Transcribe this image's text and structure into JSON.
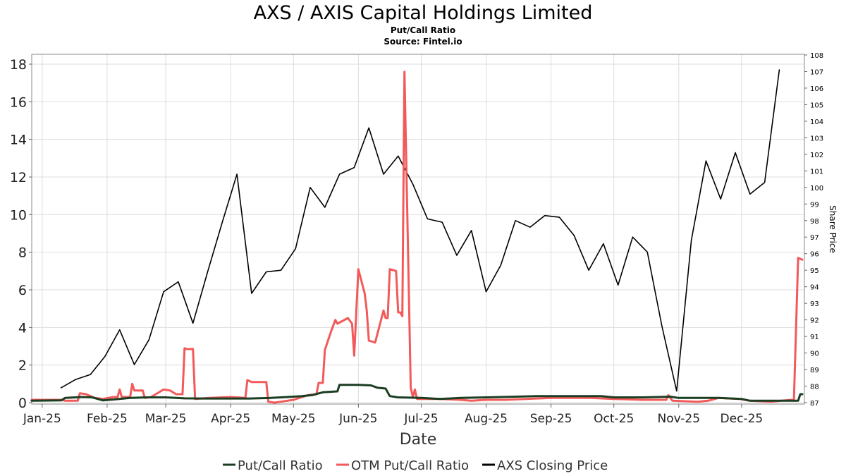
{
  "colors": {
    "put_call": "#1b3d22",
    "otm_put_call": "#f25a5a",
    "closing_price": "#000000",
    "grid": "#dddddd"
  },
  "chart_data": {
    "type": "line",
    "title": "AXS / AXIS Capital Holdings Limited",
    "subtitle": "Put/Call Ratio",
    "source": "Source: Fintel.io",
    "xlabel": "Date",
    "ylabel_left": "",
    "ylabel_right": "Share Price",
    "x_range": [
      "2024-12-27",
      "2025-12-31"
    ],
    "ylim_left": [
      0,
      18.5
    ],
    "ylim_right": [
      87,
      108
    ],
    "yticks_left": [
      0,
      2,
      4,
      6,
      8,
      10,
      12,
      14,
      16,
      18
    ],
    "yticks_right": [
      87,
      88,
      89,
      90,
      91,
      92,
      93,
      94,
      95,
      96,
      97,
      98,
      99,
      100,
      101,
      102,
      103,
      104,
      105,
      106,
      107,
      108
    ],
    "x_ticks": [
      {
        "label": "Jan-25",
        "date": "2025-01-01"
      },
      {
        "label": "Feb-25",
        "date": "2025-02-01"
      },
      {
        "label": "Mar-25",
        "date": "2025-03-01"
      },
      {
        "label": "Apr-25",
        "date": "2025-04-01"
      },
      {
        "label": "May-25",
        "date": "2025-05-01"
      },
      {
        "label": "Jun-25",
        "date": "2025-06-01"
      },
      {
        "label": "Jul-25",
        "date": "2025-07-01"
      },
      {
        "label": "Aug-25",
        "date": "2025-08-01"
      },
      {
        "label": "Sep-25",
        "date": "2025-09-01"
      },
      {
        "label": "Oct-25",
        "date": "2025-10-01"
      },
      {
        "label": "Nov-25",
        "date": "2025-11-01"
      },
      {
        "label": "Dec-25",
        "date": "2025-12-01"
      }
    ],
    "grid": true,
    "legend_position": "bottom-center",
    "series": [
      {
        "name": "Put/Call Ratio",
        "axis": "left",
        "color": "#1b3d22",
        "points": [
          [
            "2024-12-27",
            0.1
          ],
          [
            "2025-01-10",
            0.12
          ],
          [
            "2025-01-12",
            0.25
          ],
          [
            "2025-01-20",
            0.3
          ],
          [
            "2025-01-25",
            0.28
          ],
          [
            "2025-01-30",
            0.12
          ],
          [
            "2025-02-05",
            0.18
          ],
          [
            "2025-02-12",
            0.25
          ],
          [
            "2025-02-20",
            0.28
          ],
          [
            "2025-03-01",
            0.28
          ],
          [
            "2025-03-10",
            0.23
          ],
          [
            "2025-03-20",
            0.22
          ],
          [
            "2025-04-01",
            0.22
          ],
          [
            "2025-04-10",
            0.22
          ],
          [
            "2025-04-20",
            0.25
          ],
          [
            "2025-04-28",
            0.3
          ],
          [
            "2025-05-05",
            0.35
          ],
          [
            "2025-05-10",
            0.4
          ],
          [
            "2025-05-15",
            0.55
          ],
          [
            "2025-05-22",
            0.6
          ],
          [
            "2025-05-23",
            0.95
          ],
          [
            "2025-05-28",
            0.95
          ],
          [
            "2025-06-01",
            0.95
          ],
          [
            "2025-06-07",
            0.92
          ],
          [
            "2025-06-10",
            0.8
          ],
          [
            "2025-06-14",
            0.75
          ],
          [
            "2025-06-16",
            0.35
          ],
          [
            "2025-06-20",
            0.28
          ],
          [
            "2025-07-01",
            0.25
          ],
          [
            "2025-07-10",
            0.2
          ],
          [
            "2025-07-20",
            0.25
          ],
          [
            "2025-08-01",
            0.28
          ],
          [
            "2025-08-15",
            0.32
          ],
          [
            "2025-08-25",
            0.35
          ],
          [
            "2025-09-01",
            0.35
          ],
          [
            "2025-09-15",
            0.35
          ],
          [
            "2025-09-25",
            0.35
          ],
          [
            "2025-10-01",
            0.28
          ],
          [
            "2025-10-15",
            0.28
          ],
          [
            "2025-10-22",
            0.3
          ],
          [
            "2025-10-28",
            0.32
          ],
          [
            "2025-11-01",
            0.25
          ],
          [
            "2025-11-10",
            0.25
          ],
          [
            "2025-11-20",
            0.25
          ],
          [
            "2025-12-01",
            0.2
          ],
          [
            "2025-12-05",
            0.1
          ],
          [
            "2025-12-10",
            0.1
          ],
          [
            "2025-12-20",
            0.1
          ],
          [
            "2025-12-28",
            0.1
          ],
          [
            "2025-12-29",
            0.45
          ],
          [
            "2025-12-30",
            0.45
          ]
        ]
      },
      {
        "name": "OTM Put/Call Ratio",
        "axis": "left",
        "color": "#f25a5a",
        "points": [
          [
            "2024-12-27",
            0.15
          ],
          [
            "2025-01-10",
            0.15
          ],
          [
            "2025-01-12",
            0.1
          ],
          [
            "2025-01-18",
            0.1
          ],
          [
            "2025-01-19",
            0.5
          ],
          [
            "2025-01-22",
            0.45
          ],
          [
            "2025-01-26",
            0.25
          ],
          [
            "2025-01-30",
            0.2
          ],
          [
            "2025-02-04",
            0.3
          ],
          [
            "2025-02-06",
            0.3
          ],
          [
            "2025-02-07",
            0.7
          ],
          [
            "2025-02-08",
            0.3
          ],
          [
            "2025-02-12",
            0.3
          ],
          [
            "2025-02-13",
            1.0
          ],
          [
            "2025-02-14",
            0.65
          ],
          [
            "2025-02-18",
            0.65
          ],
          [
            "2025-02-19",
            0.25
          ],
          [
            "2025-02-22",
            0.3
          ],
          [
            "2025-02-28",
            0.7
          ],
          [
            "2025-03-03",
            0.65
          ],
          [
            "2025-03-06",
            0.45
          ],
          [
            "2025-03-09",
            0.45
          ],
          [
            "2025-03-10",
            2.9
          ],
          [
            "2025-03-11",
            2.85
          ],
          [
            "2025-03-14",
            2.85
          ],
          [
            "2025-03-15",
            0.2
          ],
          [
            "2025-03-22",
            0.25
          ],
          [
            "2025-04-01",
            0.3
          ],
          [
            "2025-04-08",
            0.25
          ],
          [
            "2025-04-09",
            1.2
          ],
          [
            "2025-04-11",
            1.1
          ],
          [
            "2025-04-18",
            1.1
          ],
          [
            "2025-04-19",
            0.05
          ],
          [
            "2025-04-22",
            0.0
          ],
          [
            "2025-04-28",
            0.1
          ],
          [
            "2025-05-01",
            0.15
          ],
          [
            "2025-05-08",
            0.4
          ],
          [
            "2025-05-12",
            0.45
          ],
          [
            "2025-05-13",
            1.05
          ],
          [
            "2025-05-15",
            1.05
          ],
          [
            "2025-05-16",
            2.8
          ],
          [
            "2025-05-19",
            3.8
          ],
          [
            "2025-05-21",
            4.4
          ],
          [
            "2025-05-22",
            4.2
          ],
          [
            "2025-05-27",
            4.5
          ],
          [
            "2025-05-29",
            4.2
          ],
          [
            "2025-05-30",
            2.5
          ],
          [
            "2025-06-01",
            7.1
          ],
          [
            "2025-06-04",
            5.8
          ],
          [
            "2025-06-05",
            4.9
          ],
          [
            "2025-06-06",
            3.3
          ],
          [
            "2025-06-09",
            3.2
          ],
          [
            "2025-06-13",
            4.9
          ],
          [
            "2025-06-14",
            4.5
          ],
          [
            "2025-06-15",
            4.5
          ],
          [
            "2025-06-16",
            7.1
          ],
          [
            "2025-06-19",
            7.0
          ],
          [
            "2025-06-20",
            4.8
          ],
          [
            "2025-06-21",
            4.8
          ],
          [
            "2025-06-22",
            4.6
          ],
          [
            "2025-06-23",
            17.6
          ],
          [
            "2025-06-24",
            12.0
          ],
          [
            "2025-06-26",
            0.8
          ],
          [
            "2025-06-27",
            0.3
          ],
          [
            "2025-06-28",
            0.7
          ],
          [
            "2025-06-29",
            0.2
          ],
          [
            "2025-07-10",
            0.2
          ],
          [
            "2025-07-20",
            0.15
          ],
          [
            "2025-07-25",
            0.1
          ],
          [
            "2025-08-01",
            0.15
          ],
          [
            "2025-08-10",
            0.15
          ],
          [
            "2025-08-20",
            0.2
          ],
          [
            "2025-09-01",
            0.25
          ],
          [
            "2025-09-10",
            0.25
          ],
          [
            "2025-09-20",
            0.25
          ],
          [
            "2025-10-01",
            0.2
          ],
          [
            "2025-10-15",
            0.15
          ],
          [
            "2025-10-20",
            0.15
          ],
          [
            "2025-10-26",
            0.15
          ],
          [
            "2025-10-27",
            0.4
          ],
          [
            "2025-10-29",
            0.1
          ],
          [
            "2025-11-10",
            0.05
          ],
          [
            "2025-11-15",
            0.1
          ],
          [
            "2025-11-20",
            0.25
          ],
          [
            "2025-11-30",
            0.2
          ],
          [
            "2025-12-05",
            0.1
          ],
          [
            "2025-12-15",
            0.05
          ],
          [
            "2025-12-20",
            0.1
          ],
          [
            "2025-12-25",
            0.15
          ],
          [
            "2025-12-26",
            0.1
          ],
          [
            "2025-12-28",
            7.7
          ],
          [
            "2025-12-30",
            7.6
          ]
        ]
      },
      {
        "name": "AXS Closing Price",
        "axis": "right",
        "color": "#000000",
        "points": [
          [
            "2025-01-10",
            87.9
          ],
          [
            "2025-01-17",
            88.4
          ],
          [
            "2025-01-24",
            88.7
          ],
          [
            "2025-01-31",
            89.8
          ],
          [
            "2025-02-07",
            91.4
          ],
          [
            "2025-02-14",
            89.3
          ],
          [
            "2025-02-21",
            90.8
          ],
          [
            "2025-02-28",
            93.7
          ],
          [
            "2025-03-07",
            94.3
          ],
          [
            "2025-03-14",
            91.8
          ],
          [
            "2025-03-21",
            94.9
          ],
          [
            "2025-03-28",
            97.9
          ],
          [
            "2025-04-04",
            100.8
          ],
          [
            "2025-04-11",
            93.6
          ],
          [
            "2025-04-18",
            94.9
          ],
          [
            "2025-04-25",
            95.0
          ],
          [
            "2025-05-02",
            96.3
          ],
          [
            "2025-05-09",
            100.0
          ],
          [
            "2025-05-16",
            98.8
          ],
          [
            "2025-05-23",
            100.8
          ],
          [
            "2025-05-30",
            101.2
          ],
          [
            "2025-06-06",
            103.6
          ],
          [
            "2025-06-13",
            100.8
          ],
          [
            "2025-06-20",
            101.9
          ],
          [
            "2025-06-27",
            100.2
          ],
          [
            "2025-07-04",
            98.1
          ],
          [
            "2025-07-11",
            97.9
          ],
          [
            "2025-07-18",
            95.9
          ],
          [
            "2025-07-25",
            97.4
          ],
          [
            "2025-08-01",
            93.7
          ],
          [
            "2025-08-08",
            95.3
          ],
          [
            "2025-08-15",
            98.0
          ],
          [
            "2025-08-22",
            97.6
          ],
          [
            "2025-08-29",
            98.3
          ],
          [
            "2025-09-05",
            98.2
          ],
          [
            "2025-09-12",
            97.1
          ],
          [
            "2025-09-19",
            95.0
          ],
          [
            "2025-09-26",
            96.6
          ],
          [
            "2025-10-03",
            94.1
          ],
          [
            "2025-10-10",
            97.0
          ],
          [
            "2025-10-17",
            96.1
          ],
          [
            "2025-10-24",
            91.6
          ],
          [
            "2025-10-31",
            87.7
          ],
          [
            "2025-11-07",
            96.8
          ],
          [
            "2025-11-14",
            101.6
          ],
          [
            "2025-11-21",
            99.3
          ],
          [
            "2025-11-28",
            102.1
          ],
          [
            "2025-12-05",
            99.6
          ],
          [
            "2025-12-12",
            100.3
          ],
          [
            "2025-12-19",
            107.1
          ]
        ]
      }
    ]
  }
}
